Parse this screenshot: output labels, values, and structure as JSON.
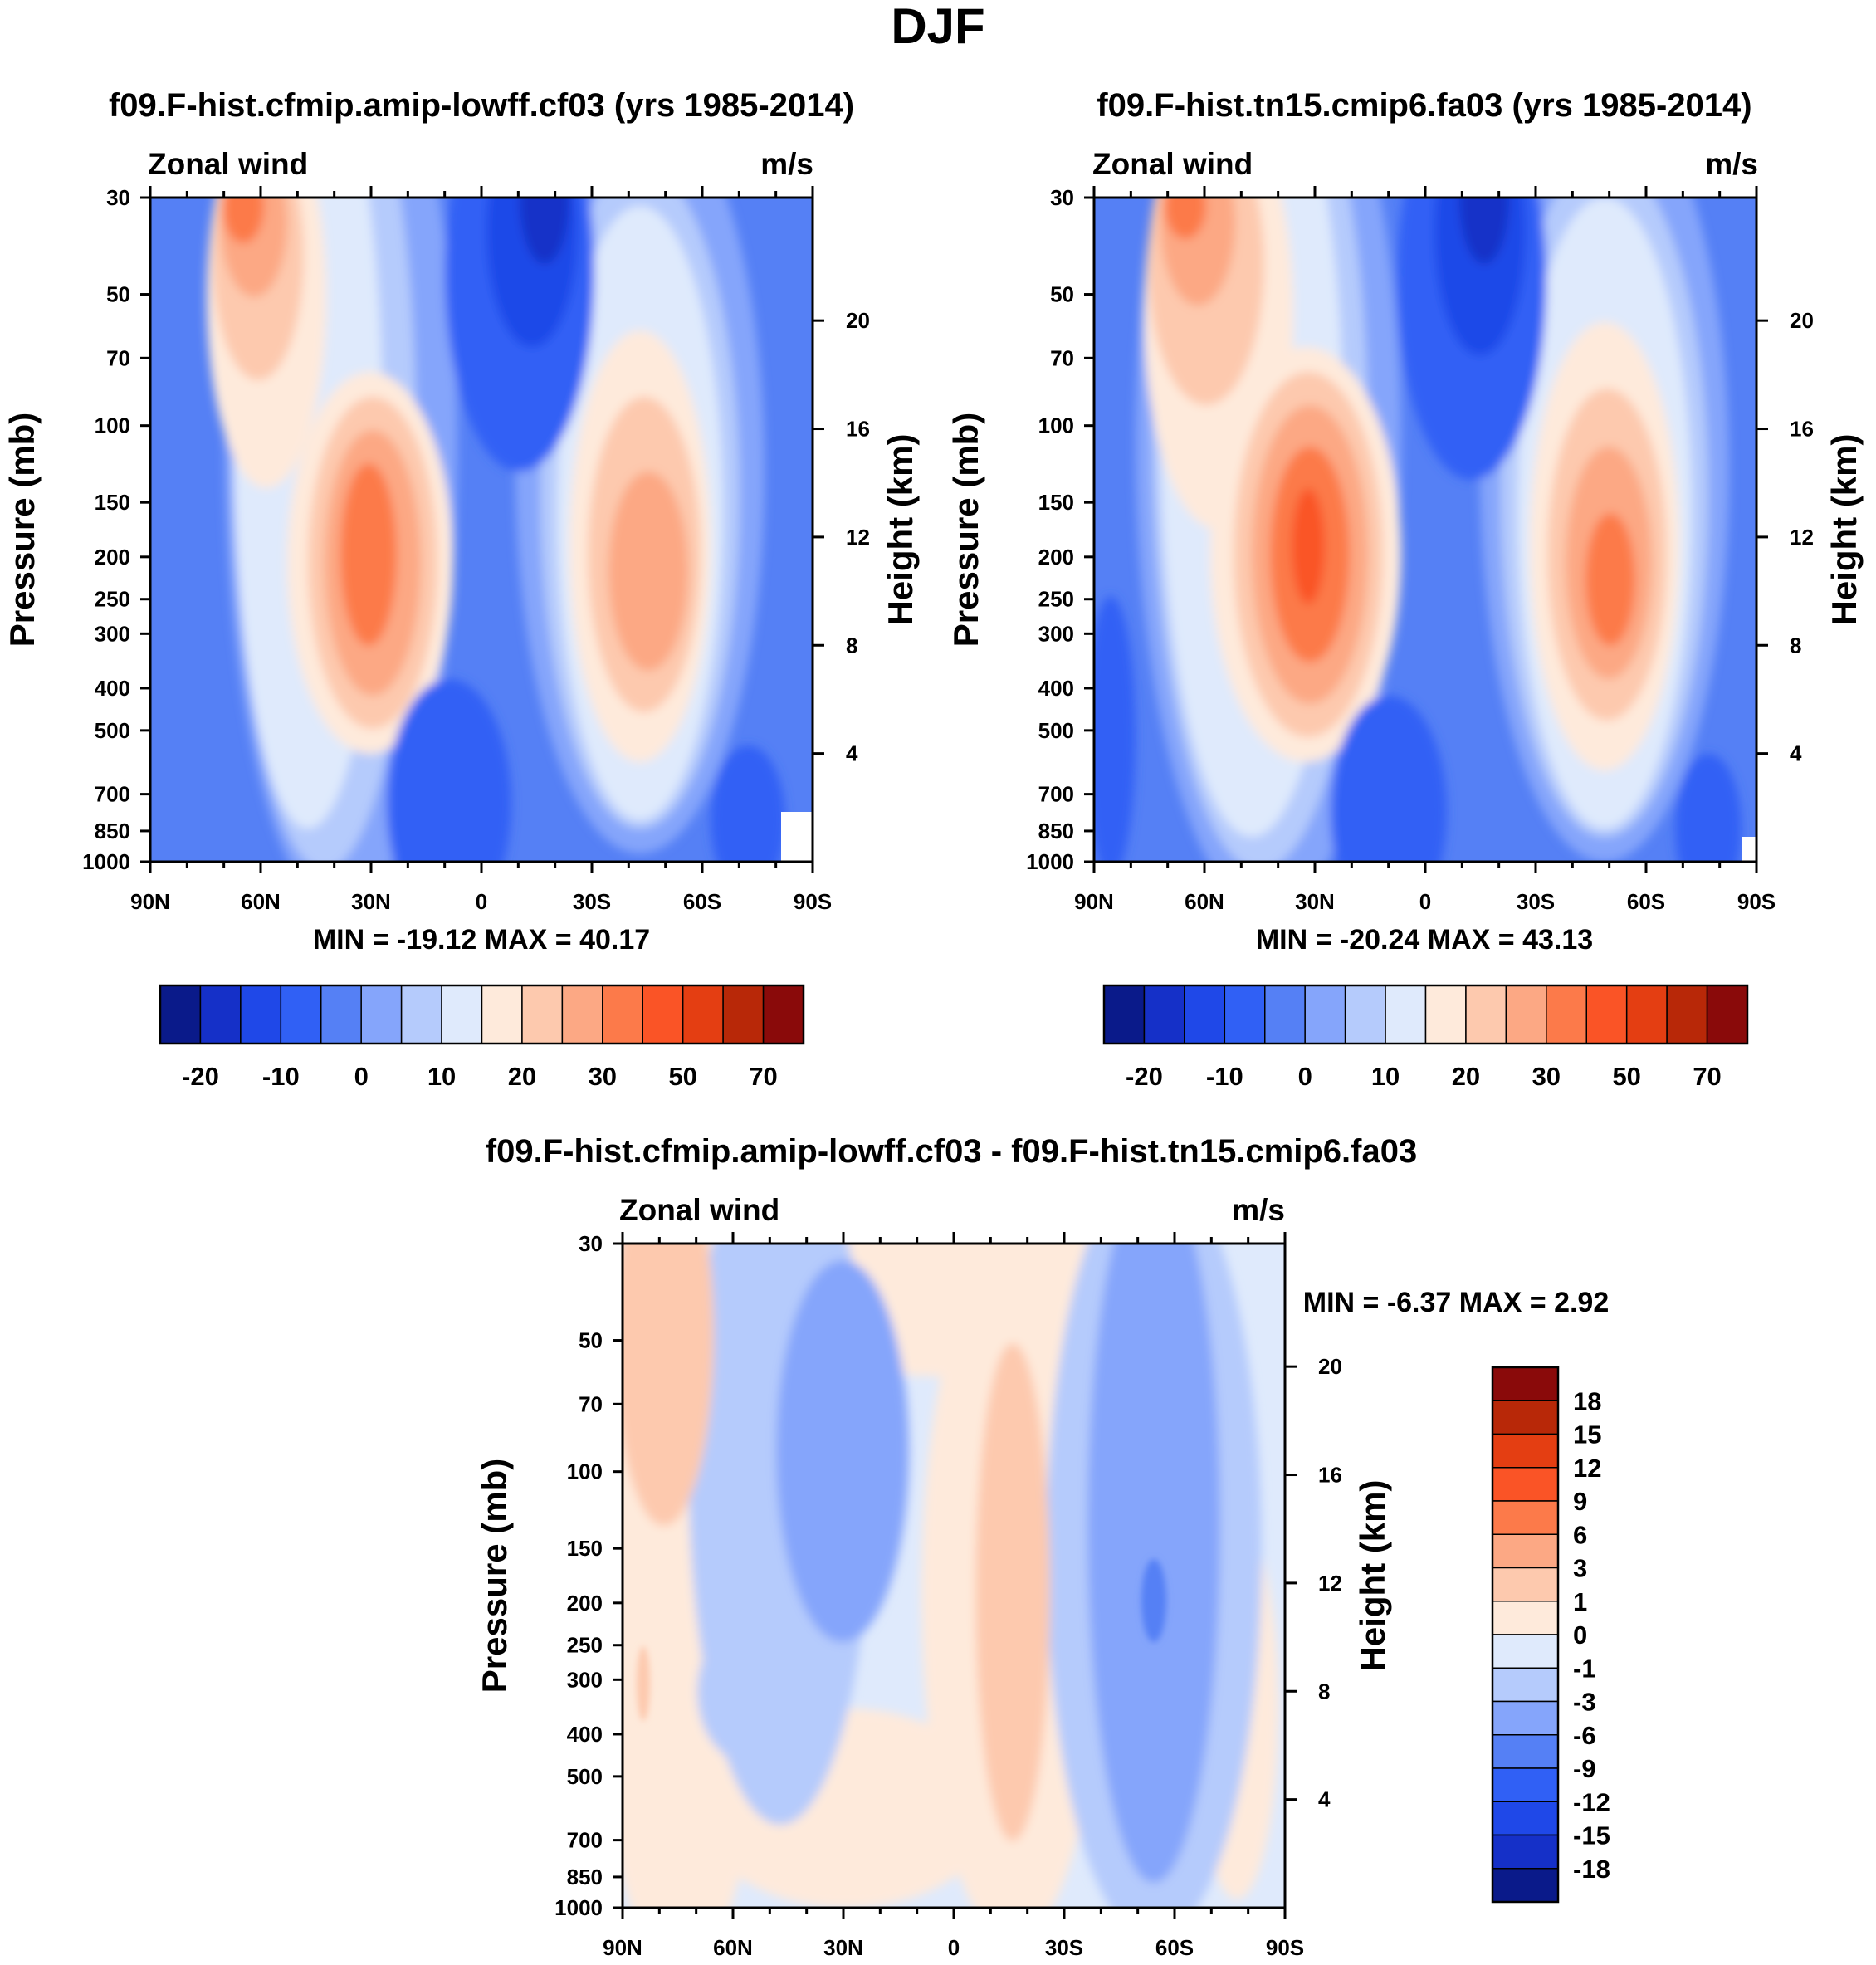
{
  "figure": {
    "title": "DJF"
  },
  "axes": {
    "pressure_ticks": [
      "30",
      "50",
      "70",
      "100",
      "150",
      "200",
      "250",
      "300",
      "400",
      "500",
      "700",
      "850",
      "1000"
    ],
    "height_ticks": [
      "20",
      "16",
      "12",
      "8",
      "4"
    ],
    "lat_ticks": [
      "90N",
      "60N",
      "30N",
      "0",
      "30S",
      "60S",
      "90S"
    ],
    "left_title": "Pressure (mb)",
    "right_title": "Height (km)"
  },
  "panels": [
    {
      "title": "f09.F-hist.cfmip.amip-lowff.cf03 (yrs 1985-2014)",
      "variable": "Zonal wind",
      "units": "m/s",
      "stats": "MIN = -19.12  MAX =  40.17"
    },
    {
      "title": "f09.F-hist.tn15.cmip6.fa03 (yrs 1985-2014)",
      "variable": "Zonal wind",
      "units": "m/s",
      "stats": "MIN = -20.24  MAX =  43.13"
    },
    {
      "title": "f09.F-hist.cfmip.amip-lowff.cf03 - f09.F-hist.tn15.cmip6.fa03",
      "variable": "Zonal wind",
      "units": "m/s",
      "stats": "MIN =  -6.37  MAX =    2.92"
    }
  ],
  "colorbar_top": {
    "colors": [
      "#0a1a8a",
      "#1530c8",
      "#1f48e8",
      "#3060f5",
      "#5580f5",
      "#85a5fb",
      "#b5cbfc",
      "#dfeafc",
      "#feeadb",
      "#fdc9ae",
      "#fca884",
      "#fc7a4a",
      "#fa5426",
      "#e43e12",
      "#b82808",
      "#8a0a0a"
    ],
    "labels": [
      "-20",
      "-10",
      "0",
      "10",
      "20",
      "30",
      "50",
      "70"
    ]
  },
  "colorbar_diff": {
    "colors": [
      "#0a1a8a",
      "#1530c8",
      "#1f48e8",
      "#3060f5",
      "#5580f5",
      "#85a5fb",
      "#b5cbfc",
      "#dfeafc",
      "#feeadb",
      "#fdc9ae",
      "#fca884",
      "#fc7a4a",
      "#fa5426",
      "#e43e12",
      "#b82808",
      "#8a0a0a"
    ],
    "labels": [
      "18",
      "15",
      "12",
      "9",
      "6",
      "3",
      "1",
      "0",
      "-1",
      "-3",
      "-6",
      "-9",
      "-12",
      "-15",
      "-18"
    ]
  }
}
